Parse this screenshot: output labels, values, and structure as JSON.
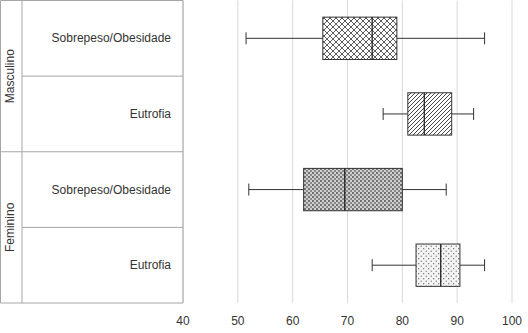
{
  "chart_data": {
    "type": "boxplot",
    "orientation": "horizontal",
    "grid": true,
    "xlim": [
      40,
      100
    ],
    "xticks": [
      40,
      50,
      60,
      70,
      80,
      90,
      100
    ],
    "groups": [
      {
        "name": "Masculino",
        "categories": [
          "Sobrepeso/Obesidade",
          "Eutrofia"
        ],
        "boxes": [
          {
            "min": 51.5,
            "q1": 65.5,
            "median": 74.5,
            "q3": 79,
            "max": 95
          },
          {
            "min": 76.5,
            "q1": 81,
            "median": 84,
            "q3": 89,
            "max": 93
          }
        ]
      },
      {
        "name": "Feminino",
        "categories": [
          "Sobrepeso/Obesidade",
          "Eutrofia"
        ],
        "boxes": [
          {
            "min": 52,
            "q1": 62,
            "median": 69.5,
            "q3": 80,
            "max": 88
          },
          {
            "min": 74.5,
            "q1": 82.5,
            "median": 87,
            "q3": 90.5,
            "max": 95
          }
        ]
      }
    ]
  }
}
